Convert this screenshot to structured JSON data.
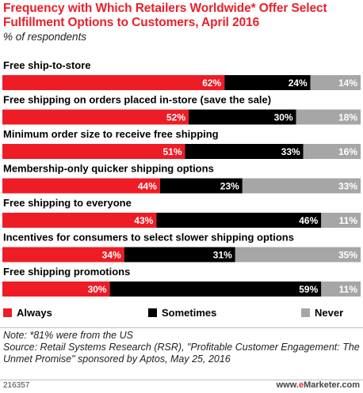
{
  "title": "Frequency with Which Retailers Worldwide* Offer Select Fulfillment Options to Customers, April 2016",
  "subtitle": "% of respondents",
  "colors": {
    "Always": "#ee1c25",
    "Sometimes": "#000000",
    "Never": "#a6a6a6"
  },
  "chart_data": {
    "type": "bar",
    "stacked": true,
    "orientation": "horizontal",
    "categories": [
      "Free ship-to-store",
      "Free shipping on orders placed in-store (save the sale)",
      "Minimum order size to receive free shipping",
      "Membership-only quicker shipping options",
      "Free shipping to everyone",
      "Incentives for consumers to select slower shipping options",
      "Free shipping promotions"
    ],
    "series": [
      {
        "name": "Always",
        "values": [
          62,
          52,
          51,
          44,
          43,
          34,
          30
        ]
      },
      {
        "name": "Sometimes",
        "values": [
          24,
          30,
          33,
          23,
          46,
          31,
          59
        ]
      },
      {
        "name": "Never",
        "values": [
          14,
          18,
          16,
          33,
          11,
          35,
          11
        ]
      }
    ],
    "value_suffix": "%",
    "legend_position": "bottom"
  },
  "notes": {
    "note": "Note: *81% were from the US",
    "source_line1": "Source: Retail Systems Research (RSR), \"Profitable Customer Engagement: The",
    "source_line2": "Unmet Promise\" sponsored by Aptos, May 25, 2016"
  },
  "chart_id": "216357",
  "brand": {
    "prefix": "www.",
    "e": "e",
    "rest": "Marketer.com"
  }
}
